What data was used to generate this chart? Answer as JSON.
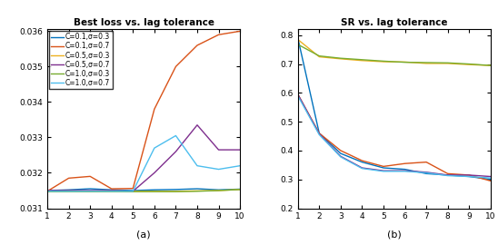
{
  "x": [
    1,
    2,
    3,
    4,
    5,
    6,
    7,
    8,
    9,
    10
  ],
  "loss": {
    "C0.1_cr0.3": [
      0.0315,
      0.03152,
      0.03155,
      0.03152,
      0.0315,
      0.03152,
      0.03153,
      0.03155,
      0.03152,
      0.03154
    ],
    "C0.1_cr0.7": [
      0.03148,
      0.03185,
      0.0319,
      0.03155,
      0.03156,
      0.0338,
      0.035,
      0.0356,
      0.0359,
      0.036
    ],
    "C0.5_cr0.3": [
      0.03148,
      0.03149,
      0.03148,
      0.03149,
      0.03148,
      0.03148,
      0.03148,
      0.03149,
      0.0315,
      0.03153
    ],
    "C0.5_cr0.7": [
      0.0315,
      0.0315,
      0.0315,
      0.0315,
      0.03148,
      0.032,
      0.0326,
      0.03335,
      0.03265,
      0.03265
    ],
    "C1.0_cr0.3": [
      0.03147,
      0.03147,
      0.03147,
      0.03147,
      0.03147,
      0.03147,
      0.03147,
      0.03148,
      0.0315,
      0.03153
    ],
    "C1.0_cr0.7": [
      0.03148,
      0.03148,
      0.03148,
      0.03148,
      0.03148,
      0.0327,
      0.03305,
      0.0322,
      0.0321,
      0.0322
    ]
  },
  "sr": {
    "C0.1_cr0.3": [
      0.79,
      0.46,
      0.39,
      0.36,
      0.34,
      0.335,
      0.32,
      0.315,
      0.31,
      0.3
    ],
    "C0.1_cr0.7": [
      0.595,
      0.46,
      0.4,
      0.365,
      0.345,
      0.355,
      0.36,
      0.32,
      0.315,
      0.295
    ],
    "C0.5_cr0.3": [
      0.785,
      0.725,
      0.718,
      0.712,
      0.708,
      0.707,
      0.702,
      0.702,
      0.698,
      0.695
    ],
    "C0.5_cr0.7": [
      0.595,
      0.458,
      0.38,
      0.34,
      0.33,
      0.33,
      0.325,
      0.315,
      0.315,
      0.31
    ],
    "C1.0_cr0.3": [
      0.768,
      0.728,
      0.72,
      0.715,
      0.71,
      0.706,
      0.705,
      0.704,
      0.7,
      0.695
    ],
    "C1.0_cr0.7": [
      0.59,
      0.455,
      0.378,
      0.338,
      0.328,
      0.328,
      0.323,
      0.313,
      0.31,
      0.305
    ]
  },
  "colors": {
    "C0.1_cr0.3": "#0072BD",
    "C0.1_cr0.7": "#D95319",
    "C0.5_cr0.3": "#EDB120",
    "C0.5_cr0.7": "#7E2F8E",
    "C1.0_cr0.3": "#77AC30",
    "C1.0_cr0.7": "#4DBEEE"
  },
  "labels": {
    "C0.1_cr0.3": "C=0.1,σ=0.3",
    "C0.1_cr0.7": "C=0.1,σ=0.7",
    "C0.5_cr0.3": "C=0.5,σ=0.3",
    "C0.5_cr0.7": "C=0.5,σ=0.7",
    "C1.0_cr0.3": "C=1.0,σ=0.3",
    "C1.0_cr0.7": "C=1.0,σ=0.7"
  },
  "title_a": "Best loss vs. lag tolerance",
  "title_b": "SR vs. lag tolerance",
  "xlabel_a": "(a)",
  "xlabel_b": "(b)",
  "ylim_a": [
    0.0311,
    0.03605
  ],
  "ylim_b": [
    0.2,
    0.82
  ],
  "yticks_a": [
    0.031,
    0.032,
    0.033,
    0.034,
    0.035,
    0.036
  ],
  "yticks_b": [
    0.2,
    0.3,
    0.4,
    0.5,
    0.6,
    0.7,
    0.8
  ]
}
